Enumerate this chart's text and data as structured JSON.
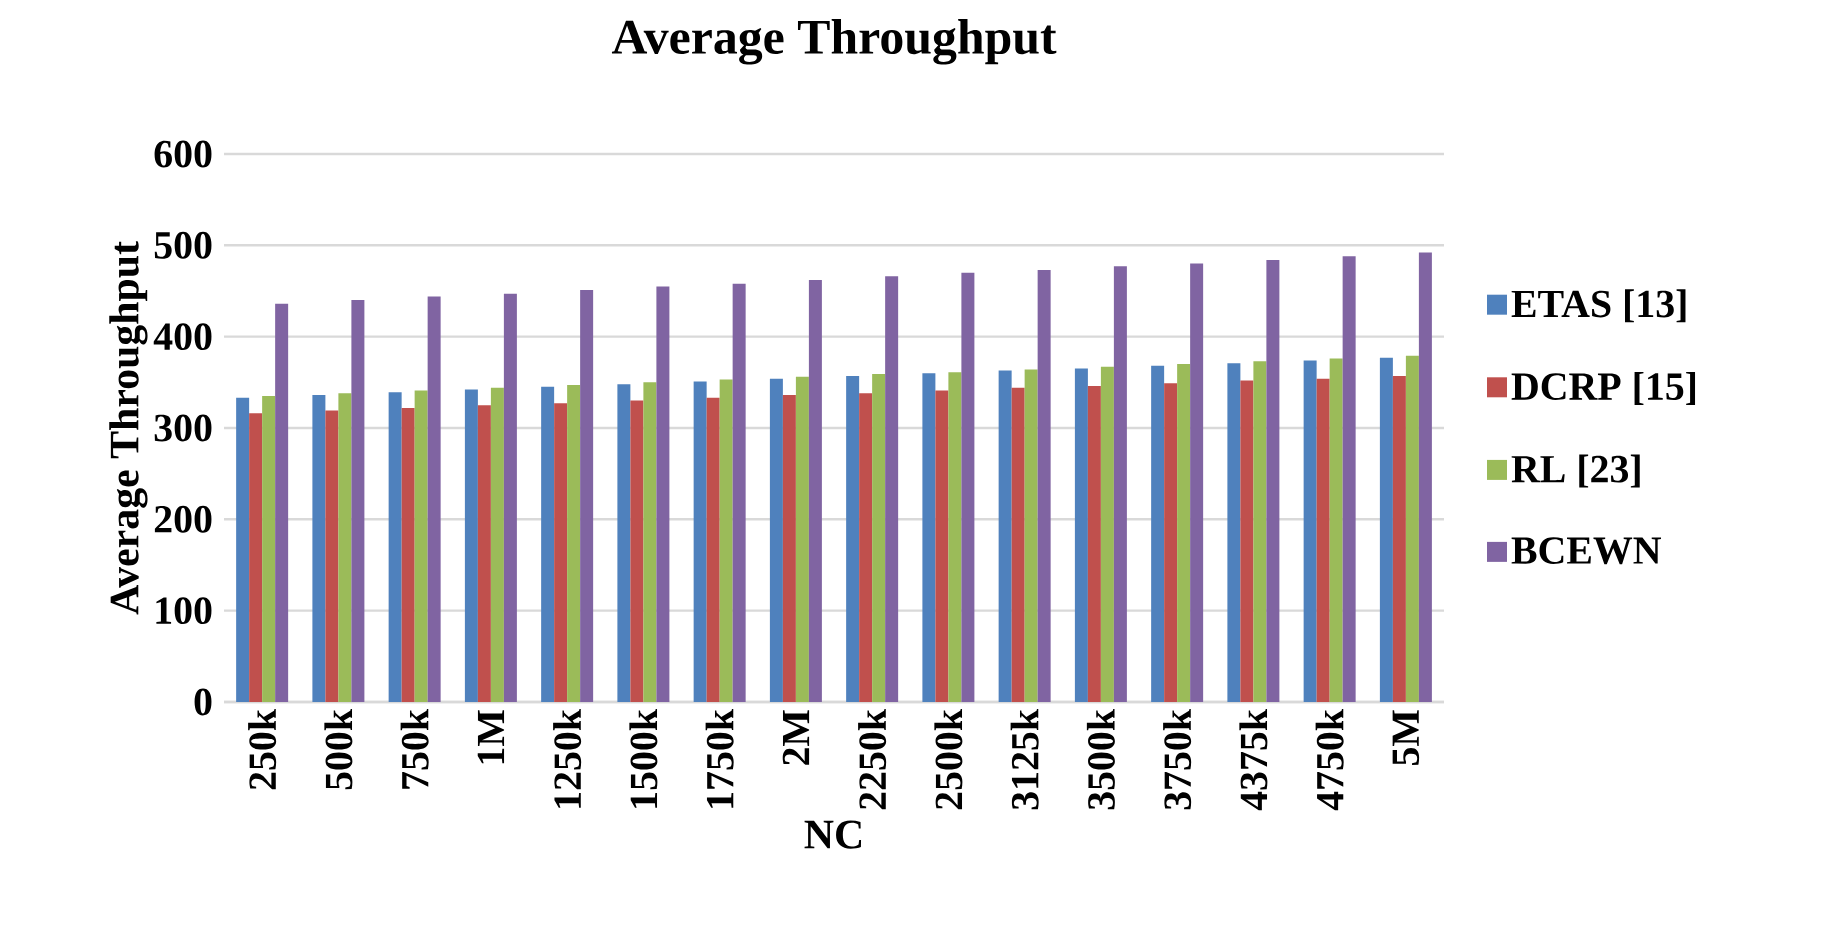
{
  "chart_data": {
    "type": "bar",
    "title": "Average Throughput",
    "xlabel": "NC",
    "ylabel": "Average Throughput",
    "categories": [
      "250k",
      "500k",
      "750k",
      "1M",
      "1250k",
      "1500k",
      "1750k",
      "2M",
      "2250k",
      "2500k",
      "3125k",
      "3500k",
      "3750k",
      "4375k",
      "4750k",
      "5M"
    ],
    "series": [
      {
        "name": "ETAS [13]",
        "color": "#4f81bd",
        "values": [
          333,
          336,
          339,
          342,
          345,
          348,
          351,
          354,
          357,
          360,
          363,
          365,
          368,
          371,
          374,
          377
        ]
      },
      {
        "name": "DCRP [15]",
        "color": "#c0504d",
        "values": [
          316,
          319,
          322,
          325,
          327,
          330,
          333,
          336,
          338,
          341,
          344,
          346,
          349,
          352,
          354,
          357
        ]
      },
      {
        "name": "RL [23]",
        "color": "#9bbb59",
        "values": [
          335,
          338,
          341,
          344,
          347,
          350,
          353,
          356,
          359,
          361,
          364,
          367,
          370,
          373,
          376,
          379
        ]
      },
      {
        "name": "BCEWN",
        "color": "#8064a2",
        "values": [
          436,
          440,
          444,
          447,
          451,
          455,
          458,
          462,
          466,
          470,
          473,
          477,
          480,
          484,
          488,
          492
        ]
      }
    ],
    "ylim": [
      0,
      600
    ],
    "yticks": [
      0,
      100,
      200,
      300,
      400,
      500,
      600
    ],
    "grid": "y",
    "legend": "right"
  }
}
